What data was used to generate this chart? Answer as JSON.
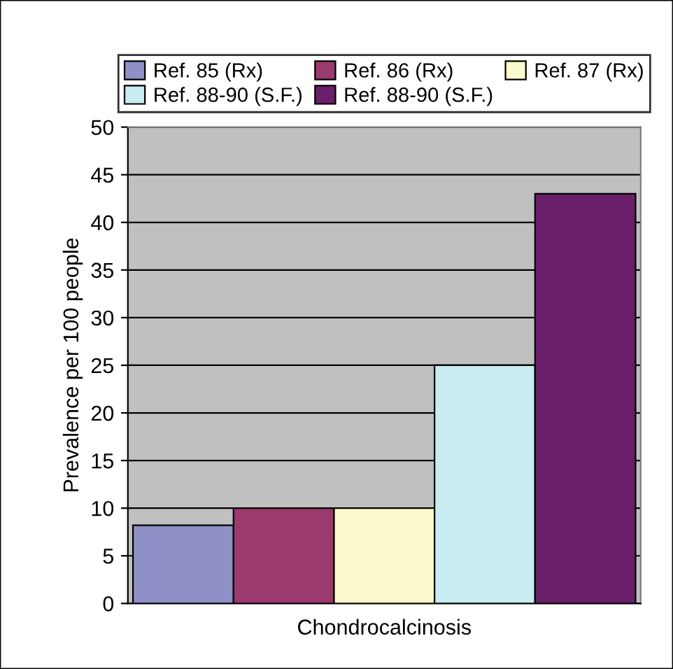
{
  "chart_data": {
    "type": "bar",
    "ylabel": "Prevalence per 100 people",
    "categories": [
      "Chondrocalcinosis"
    ],
    "series": [
      {
        "name": "Ref. 85 (Rx)",
        "color": "#9090c8",
        "values": [
          8.2
        ]
      },
      {
        "name": "Ref. 86 (Rx)",
        "color": "#9b3a6e",
        "values": [
          10
        ]
      },
      {
        "name": "Ref. 87 (Rx)",
        "color": "#fafacc",
        "values": [
          10
        ]
      },
      {
        "name": "Ref. 88-90 (S.F.)",
        "color": "#c8ecf0",
        "values": [
          25
        ]
      },
      {
        "name": "Ref. 88-90 (S.F.)",
        "color": "#6a1f6a",
        "values": [
          43
        ]
      }
    ],
    "ylim": [
      0,
      50
    ],
    "yticks": [
      0,
      5,
      10,
      15,
      20,
      25,
      30,
      35,
      40,
      45,
      50
    ],
    "grid": "y",
    "legend": "top"
  }
}
